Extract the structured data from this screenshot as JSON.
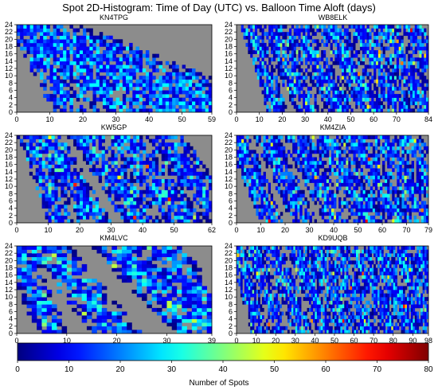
{
  "title": "Spot 2D-Histogram: Time of Day (UTC) vs. Balloon Time Aloft (days)",
  "colorbar": {
    "label": "Number of Spots",
    "min": 0,
    "max": 80,
    "ticks": [
      0,
      10,
      20,
      30,
      40,
      50,
      60,
      70,
      80
    ],
    "colormap": "jet",
    "colors": [
      "#00007f",
      "#0000ff",
      "#007fff",
      "#00ffff",
      "#7fff7f",
      "#ffff00",
      "#ff7f00",
      "#ff0000",
      "#7f0000"
    ]
  },
  "empty_color": "#8c8c8c",
  "chart_data": [
    {
      "type": "heatmap",
      "title": "KN4TPG",
      "x_ticks": [
        0,
        10,
        20,
        30,
        40,
        50,
        59
      ],
      "xlim": [
        0,
        59
      ],
      "y_ticks": [
        0,
        2,
        4,
        6,
        8,
        10,
        12,
        14,
        16,
        18,
        20,
        22,
        24
      ],
      "ylim": [
        0,
        24
      ],
      "bands": [
        [
          2,
          16
        ],
        [
          2,
          33
        ],
        [
          2,
          50
        ],
        [
          2,
          67
        ]
      ],
      "max_count": 30
    },
    {
      "type": "heatmap",
      "title": "WB8ELK",
      "x_ticks": [
        0,
        10,
        20,
        30,
        40,
        50,
        60,
        70,
        84
      ],
      "xlim": [
        0,
        84
      ],
      "y_ticks": [
        0,
        2,
        4,
        6,
        8,
        10,
        12,
        14,
        16,
        18,
        20,
        22,
        24
      ],
      "ylim": [
        0,
        24
      ],
      "bands": [
        [
          6,
          18
        ],
        [
          14,
          32
        ],
        [
          26,
          46
        ],
        [
          40,
          60
        ],
        [
          52,
          72
        ],
        [
          64,
          84
        ],
        [
          75,
          95
        ]
      ],
      "max_count": 80
    },
    {
      "type": "heatmap",
      "title": "KW5GP",
      "x_ticks": [
        0,
        10,
        20,
        30,
        40,
        50,
        62
      ],
      "xlim": [
        0,
        62
      ],
      "y_ticks": [
        0,
        2,
        4,
        6,
        8,
        10,
        12,
        14,
        16,
        18,
        20,
        22,
        24
      ],
      "ylim": [
        0,
        24
      ],
      "bands": [
        [
          4,
          14
        ],
        [
          9,
          25
        ],
        [
          22,
          40
        ],
        [
          33,
          54
        ],
        [
          47,
          66
        ]
      ],
      "max_count": 70
    },
    {
      "type": "heatmap",
      "title": "KM4ZIA",
      "x_ticks": [
        0,
        10,
        20,
        30,
        40,
        50,
        60,
        70,
        79
      ],
      "xlim": [
        0,
        79
      ],
      "y_ticks": [
        0,
        2,
        4,
        6,
        8,
        10,
        12,
        14,
        16,
        18,
        20,
        22,
        24
      ],
      "ylim": [
        0,
        24
      ],
      "bands": [
        [
          0,
          15
        ],
        [
          12,
          28
        ],
        [
          24,
          42
        ],
        [
          36,
          55
        ],
        [
          48,
          67
        ],
        [
          60,
          78
        ],
        [
          70,
          88
        ]
      ],
      "max_count": 75
    },
    {
      "type": "heatmap",
      "title": "KM4LVC",
      "x_ticks": [
        0,
        10,
        20,
        30,
        39
      ],
      "xlim": [
        0,
        39
      ],
      "y_ticks": [
        0,
        2,
        4,
        6,
        8,
        10,
        12,
        14,
        16,
        18,
        20,
        22,
        24
      ],
      "ylim": [
        0,
        24
      ],
      "bands": [
        [
          0,
          7
        ],
        [
          6,
          20
        ],
        [
          20,
          38
        ],
        [
          28,
          42
        ]
      ],
      "max_count": 45
    },
    {
      "type": "heatmap",
      "title": "KD9UQB",
      "x_ticks": [
        0,
        10,
        20,
        30,
        40,
        50,
        60,
        70,
        80,
        90,
        98
      ],
      "xlim": [
        0,
        98
      ],
      "y_ticks": [
        0,
        2,
        4,
        6,
        8,
        10,
        12,
        14,
        16,
        18,
        20,
        22,
        24
      ],
      "ylim": [
        0,
        24
      ],
      "bands": [
        [
          0,
          12
        ],
        [
          8,
          22
        ],
        [
          18,
          34
        ],
        [
          30,
          46
        ],
        [
          40,
          57
        ],
        [
          50,
          68
        ],
        [
          61,
          79
        ],
        [
          71,
          90
        ],
        [
          82,
          100
        ],
        [
          92,
          108
        ]
      ],
      "max_count": 80
    }
  ]
}
